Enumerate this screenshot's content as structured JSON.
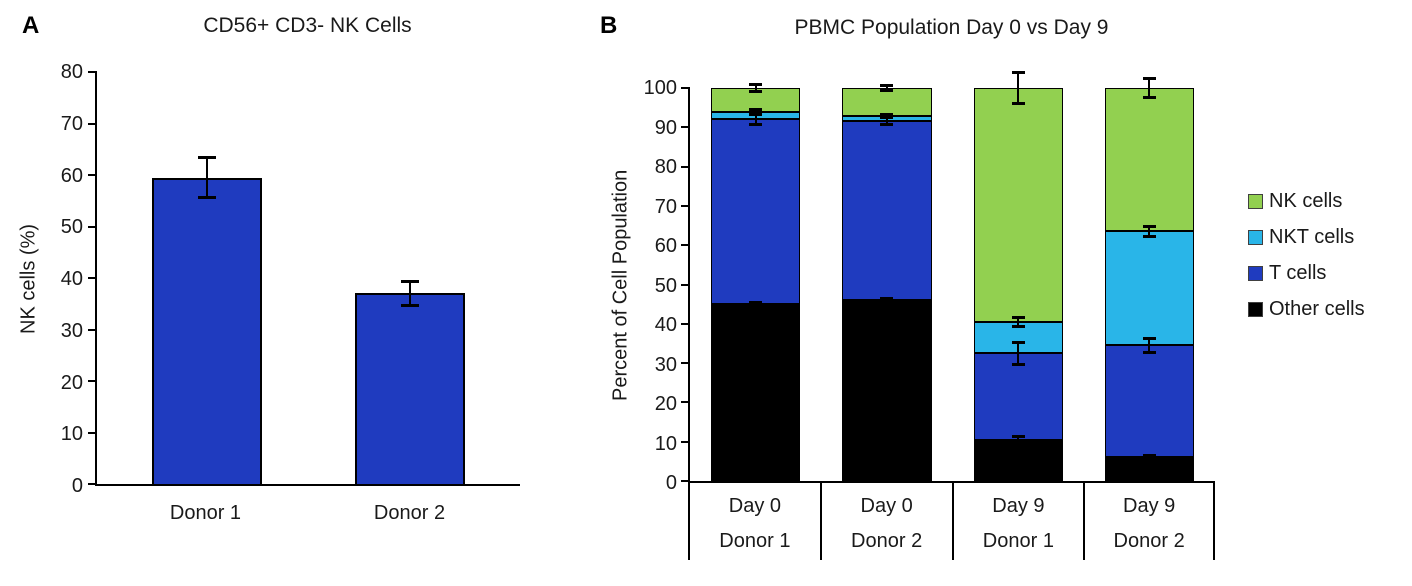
{
  "panels": {
    "a": {
      "label": "A"
    },
    "b": {
      "label": "B"
    }
  },
  "chart_data": [
    {
      "id": "nk-cells-bar",
      "type": "bar",
      "title": "CD56+ CD3- NK Cells",
      "xlabel": "",
      "ylabel": "NK cells (%)",
      "ylim": [
        0,
        80
      ],
      "ytick_step": 10,
      "grid": false,
      "categories": [
        "Donor 1",
        "Donor 2"
      ],
      "values": [
        59.5,
        37
      ],
      "errors": [
        4,
        2.5
      ],
      "bar_color": "#1f3bbf"
    },
    {
      "id": "pbmc-stacked-bar",
      "type": "bar",
      "stacked": true,
      "title": "PBMC Population Day 0 vs Day 9",
      "xlabel": "",
      "ylabel": "Percent of Cell Population",
      "ylim": [
        0,
        100
      ],
      "ytick_step": 10,
      "grid": false,
      "legend_position": "right",
      "categories": [
        [
          "Day 0",
          "Donor 1"
        ],
        [
          "Day 0",
          "Donor 2"
        ],
        [
          "Day 9",
          "Donor 1"
        ],
        [
          "Day 9",
          "Donor 2"
        ]
      ],
      "series": [
        {
          "name": "Other cells",
          "color": "#000000",
          "values": [
            45,
            46,
            10.5,
            6
          ],
          "errors": [
            0.5,
            0.5,
            1,
            0.7
          ]
        },
        {
          "name": "T cells",
          "color": "#1f3bbf",
          "values": [
            47,
            45.5,
            22,
            28.5
          ],
          "errors": [
            1.5,
            1,
            3,
            2
          ]
        },
        {
          "name": "NKT cells",
          "color": "#29b5e8",
          "values": [
            2,
            1.5,
            8,
            29
          ],
          "errors": [
            0.7,
            0.5,
            1.2,
            1.5
          ]
        },
        {
          "name": "NK cells",
          "color": "#92d050",
          "values": [
            6,
            7,
            59.5,
            36.5
          ],
          "errors": [
            1,
            0.8,
            4,
            2.5
          ]
        }
      ]
    }
  ],
  "legend": {
    "items": [
      {
        "label": "NK cells",
        "color": "#92d050"
      },
      {
        "label": "NKT cells",
        "color": "#29b5e8"
      },
      {
        "label": "T cells",
        "color": "#1f3bbf"
      },
      {
        "label": "Other cells",
        "color": "#000000"
      }
    ]
  }
}
